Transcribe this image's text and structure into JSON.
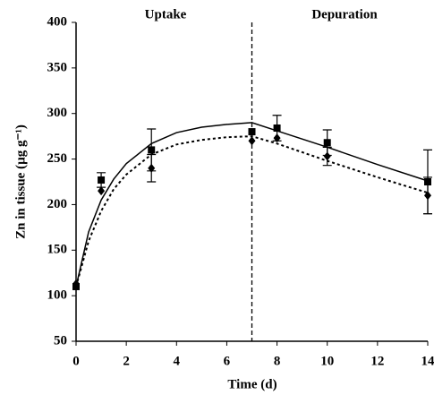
{
  "chart_data": {
    "type": "scatter",
    "xlabel": "Time (d)",
    "ylabel": "Zn in tissue (µg g⁻¹)",
    "annotations": [
      "Uptake",
      "Depuration"
    ],
    "vline": 7,
    "xlim": [
      0,
      14
    ],
    "ylim": [
      50,
      400
    ],
    "xticks": [
      0,
      2,
      4,
      6,
      8,
      10,
      12,
      14
    ],
    "yticks": [
      50,
      100,
      150,
      200,
      250,
      300,
      350,
      400
    ],
    "color": "#000000",
    "series": [
      {
        "marker": "square",
        "x": [
          0,
          1,
          3,
          7,
          8,
          10,
          14
        ],
        "values": [
          110,
          227,
          260,
          280,
          284,
          268,
          225
        ],
        "errors": [
          null,
          8,
          23,
          null,
          14,
          14,
          35
        ]
      },
      {
        "marker": "diamond",
        "x": [
          0,
          1,
          3,
          7,
          8,
          10,
          14
        ],
        "values": [
          113,
          215,
          240,
          270,
          273,
          253,
          210
        ],
        "errors": [
          null,
          null,
          15,
          null,
          null,
          10,
          20
        ]
      }
    ],
    "fits": [
      {
        "style": "solid",
        "x": [
          0,
          0.5,
          1,
          1.5,
          2,
          3,
          4,
          5,
          6,
          7,
          8,
          10,
          12,
          14
        ],
        "values": [
          110,
          170,
          205,
          228,
          245,
          267,
          279,
          285,
          288,
          290,
          281,
          263,
          244,
          226
        ]
      },
      {
        "style": "dotted",
        "x": [
          0,
          0.5,
          1,
          1.5,
          2,
          3,
          4,
          5,
          6,
          7,
          8,
          10,
          12,
          14
        ],
        "values": [
          110,
          160,
          193,
          217,
          233,
          255,
          266,
          271,
          274,
          275,
          267,
          248,
          230,
          213
        ]
      }
    ]
  }
}
